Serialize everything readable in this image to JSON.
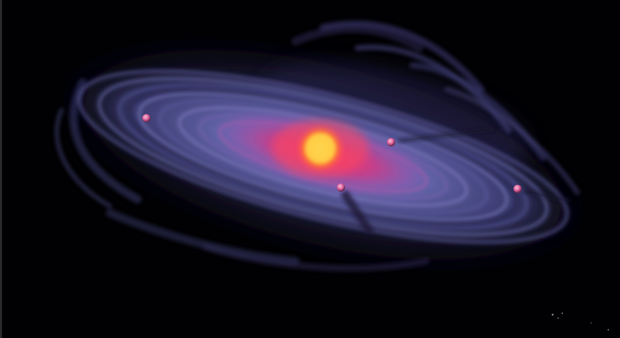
{
  "scene": {
    "subject": "protoplanetary-disk-illustration",
    "colors": {
      "background": "#010103",
      "disk_outer": "#4a4880",
      "disk_mid": "#6d6fb4",
      "inner_glow": "#e0306a",
      "core_glow": "#ffd040",
      "planetesimal": "#d86a9a"
    }
  }
}
